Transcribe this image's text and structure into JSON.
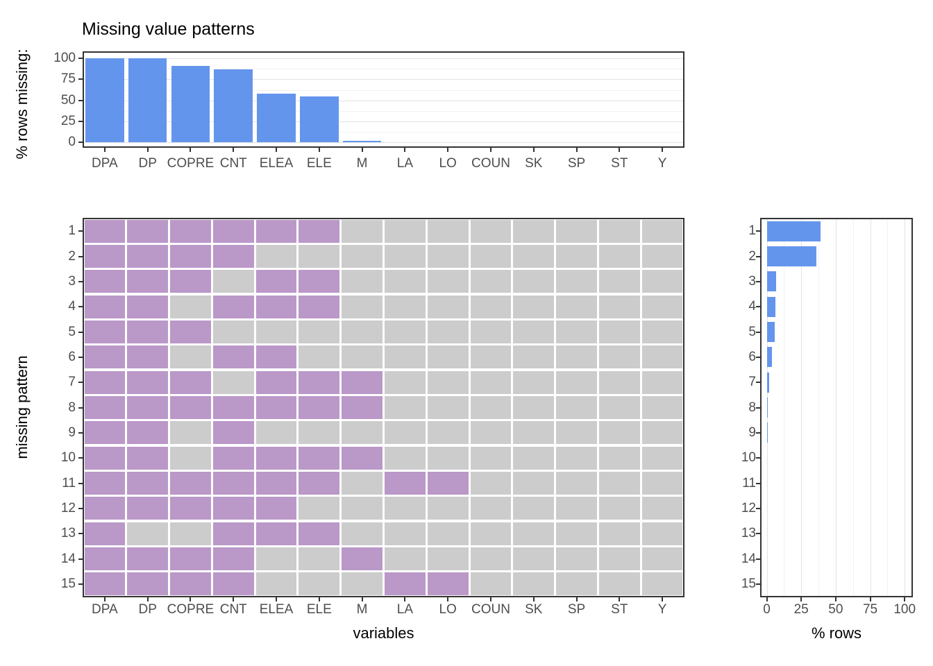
{
  "title": "Missing value patterns",
  "axes": {
    "top_y_label": "% rows missing:",
    "main_y_label": "missing pattern",
    "main_x_label": "variables",
    "right_x_label": "% rows"
  },
  "colors": {
    "bar_blue": "#6495ED",
    "missing_purple": "#BA98C8",
    "observed_grey": "#CCCCCC",
    "panel_border": "#333333",
    "tick_text": "#4D4D4D",
    "grid_major": "#E3E3E3",
    "grid_minor": "#F2F2F2"
  },
  "chart_data": [
    {
      "type": "bar",
      "id": "pct-missing-by-variable",
      "orientation": "vertical",
      "ylabel": "% rows missing:",
      "categories": [
        "DPA",
        "DP",
        "COPRE",
        "CNT",
        "ELEA",
        "ELE",
        "M",
        "LA",
        "LO",
        "COUN",
        "SK",
        "SP",
        "ST",
        "Y"
      ],
      "values": [
        100,
        100,
        91,
        87,
        58,
        55,
        2,
        0.5,
        0.5,
        0,
        0,
        0,
        0,
        0
      ],
      "ylim": [
        0,
        100
      ],
      "yticks": [
        0,
        25,
        50,
        75,
        100
      ],
      "grid": "horizontal-major-and-minor",
      "legend_position": "none"
    },
    {
      "type": "heatmap",
      "id": "missing-pattern-grid",
      "xlabel": "variables",
      "ylabel": "missing pattern",
      "columns": [
        "DPA",
        "DP",
        "COPRE",
        "CNT",
        "ELEA",
        "ELE",
        "M",
        "LA",
        "LO",
        "COUN",
        "SK",
        "SP",
        "ST",
        "Y"
      ],
      "rows": [
        1,
        2,
        3,
        4,
        5,
        6,
        7,
        8,
        9,
        10,
        11,
        12,
        13,
        14,
        15
      ],
      "cell_encoding": "1 = missing (purple), 0 = observed (grey)",
      "missing_color": "#BA98C8",
      "observed_color": "#CCCCCC",
      "matrix": [
        [
          1,
          1,
          1,
          1,
          1,
          1,
          0,
          0,
          0,
          0,
          0,
          0,
          0,
          0
        ],
        [
          1,
          1,
          1,
          1,
          0,
          0,
          0,
          0,
          0,
          0,
          0,
          0,
          0,
          0
        ],
        [
          1,
          1,
          1,
          0,
          1,
          1,
          0,
          0,
          0,
          0,
          0,
          0,
          0,
          0
        ],
        [
          1,
          1,
          0,
          1,
          1,
          1,
          0,
          0,
          0,
          0,
          0,
          0,
          0,
          0
        ],
        [
          1,
          1,
          1,
          0,
          0,
          0,
          0,
          0,
          0,
          0,
          0,
          0,
          0,
          0
        ],
        [
          1,
          1,
          0,
          1,
          1,
          0,
          0,
          0,
          0,
          0,
          0,
          0,
          0,
          0
        ],
        [
          1,
          1,
          1,
          0,
          1,
          1,
          1,
          0,
          0,
          0,
          0,
          0,
          0,
          0
        ],
        [
          1,
          1,
          1,
          1,
          1,
          1,
          1,
          0,
          0,
          0,
          0,
          0,
          0,
          0
        ],
        [
          1,
          1,
          0,
          1,
          0,
          0,
          0,
          0,
          0,
          0,
          0,
          0,
          0,
          0
        ],
        [
          1,
          1,
          0,
          1,
          1,
          1,
          1,
          0,
          0,
          0,
          0,
          0,
          0,
          0
        ],
        [
          1,
          1,
          1,
          1,
          1,
          1,
          0,
          1,
          1,
          0,
          0,
          0,
          0,
          0
        ],
        [
          1,
          1,
          1,
          1,
          1,
          0,
          0,
          0,
          0,
          0,
          0,
          0,
          0,
          0
        ],
        [
          1,
          0,
          0,
          1,
          1,
          1,
          0,
          0,
          0,
          0,
          0,
          0,
          0,
          0
        ],
        [
          1,
          1,
          1,
          1,
          0,
          0,
          1,
          0,
          0,
          0,
          0,
          0,
          0,
          0
        ],
        [
          1,
          1,
          1,
          1,
          0,
          0,
          0,
          1,
          1,
          0,
          0,
          0,
          0,
          0
        ]
      ]
    },
    {
      "type": "bar",
      "id": "pct-rows-by-pattern",
      "orientation": "horizontal",
      "xlabel": "% rows",
      "categories": [
        1,
        2,
        3,
        4,
        5,
        6,
        7,
        8,
        9,
        10,
        11,
        12,
        13,
        14,
        15
      ],
      "values": [
        39,
        36,
        7,
        6.5,
        6,
        4,
        1.7,
        0.4,
        0.4,
        0.15,
        0.15,
        0.1,
        0.1,
        0.1,
        0.1
      ],
      "xlim": [
        0,
        100
      ],
      "xticks": [
        0,
        25,
        50,
        75,
        100
      ],
      "grid": "vertical-major-and-minor",
      "legend_position": "none"
    }
  ]
}
